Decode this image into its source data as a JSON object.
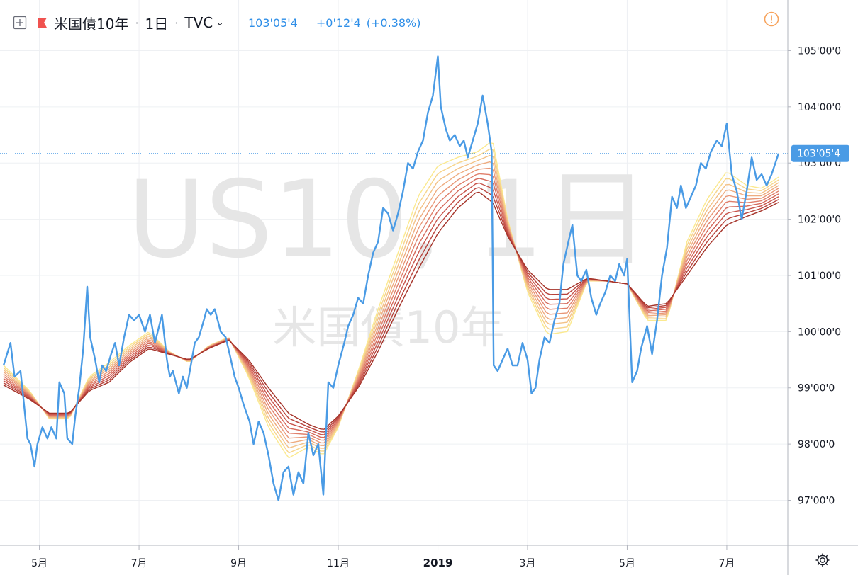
{
  "header": {
    "symbol": "米国債10年",
    "interval": "1日",
    "exchange": "TVC",
    "last": "103'05'4",
    "change": "+0'12'4",
    "change_pct": "(+0.38%)"
  },
  "watermark": {
    "line1": "US10, 1日",
    "line2": "米国債10年"
  },
  "price_label": "103'05'4",
  "colors": {
    "price_line": "#4a9be5",
    "ribbon": [
      "#fbe98f",
      "#f7d58b",
      "#f3c287",
      "#eeac80",
      "#e89676",
      "#e07f6b",
      "#d56a5c",
      "#c8554c",
      "#b8433c",
      "#a53228"
    ],
    "grid": "#eef0f3",
    "axis": "#b2b5be",
    "warning": "#f7a35c"
  },
  "icons": {
    "toggle": "plus-square-icon",
    "flag": "flag-icon",
    "warning": "warning-circle-icon",
    "settings": "gear-icon"
  },
  "chart_data": {
    "type": "line",
    "title": "米国債10年",
    "ylim": [
      96.2,
      105.9
    ],
    "y_ticks": [
      {
        "value": 97,
        "label": "97'00'0"
      },
      {
        "value": 98,
        "label": "98'00'0"
      },
      {
        "value": 99,
        "label": "99'00'0"
      },
      {
        "value": 100,
        "label": "100'00'0"
      },
      {
        "value": 101,
        "label": "101'00'0"
      },
      {
        "value": 102,
        "label": "102'00'0"
      },
      {
        "value": 103,
        "label": "103'00'0"
      },
      {
        "value": 104,
        "label": "104'00'0"
      },
      {
        "value": 105,
        "label": "105'00'0"
      }
    ],
    "x_ticks": [
      {
        "label": "5月",
        "x": 0.3
      },
      {
        "label": "7月",
        "x": 1.3
      },
      {
        "label": "9月",
        "x": 2.3
      },
      {
        "label": "11月",
        "x": 3.3
      },
      {
        "label": "2019",
        "x": 4.3,
        "bold": true
      },
      {
        "label": "3月",
        "x": 5.2
      },
      {
        "label": "5月",
        "x": 6.2
      },
      {
        "label": "7月",
        "x": 7.2
      }
    ],
    "x_range": [
      -0.06,
      7.72
    ],
    "last_value": 103.17,
    "series": [
      {
        "name": "米国債10年",
        "points": [
          [
            -0.06,
            99.4
          ],
          [
            0.01,
            99.8
          ],
          [
            0.05,
            99.2
          ],
          [
            0.11,
            99.3
          ],
          [
            0.14,
            98.8
          ],
          [
            0.18,
            98.1
          ],
          [
            0.21,
            98.0
          ],
          [
            0.25,
            97.6
          ],
          [
            0.28,
            98.0
          ],
          [
            0.33,
            98.3
          ],
          [
            0.38,
            98.1
          ],
          [
            0.42,
            98.3
          ],
          [
            0.47,
            98.1
          ],
          [
            0.5,
            99.1
          ],
          [
            0.55,
            98.9
          ],
          [
            0.58,
            98.1
          ],
          [
            0.63,
            98.0
          ],
          [
            0.66,
            98.5
          ],
          [
            0.7,
            99.0
          ],
          [
            0.74,
            99.7
          ],
          [
            0.78,
            100.8
          ],
          [
            0.81,
            99.9
          ],
          [
            0.86,
            99.5
          ],
          [
            0.9,
            99.1
          ],
          [
            0.93,
            99.4
          ],
          [
            0.97,
            99.3
          ],
          [
            1.02,
            99.6
          ],
          [
            1.06,
            99.8
          ],
          [
            1.1,
            99.4
          ],
          [
            1.15,
            99.9
          ],
          [
            1.2,
            100.3
          ],
          [
            1.25,
            100.2
          ],
          [
            1.3,
            100.3
          ],
          [
            1.36,
            100.0
          ],
          [
            1.41,
            100.3
          ],
          [
            1.46,
            99.8
          ],
          [
            1.53,
            100.3
          ],
          [
            1.58,
            99.5
          ],
          [
            1.61,
            99.2
          ],
          [
            1.64,
            99.3
          ],
          [
            1.7,
            98.9
          ],
          [
            1.74,
            99.2
          ],
          [
            1.78,
            99.0
          ],
          [
            1.82,
            99.4
          ],
          [
            1.86,
            99.8
          ],
          [
            1.9,
            99.9
          ],
          [
            1.95,
            100.2
          ],
          [
            1.98,
            100.4
          ],
          [
            2.02,
            100.3
          ],
          [
            2.06,
            100.4
          ],
          [
            2.12,
            100.0
          ],
          [
            2.17,
            99.9
          ],
          [
            2.21,
            99.6
          ],
          [
            2.26,
            99.2
          ],
          [
            2.3,
            99.0
          ],
          [
            2.35,
            98.7
          ],
          [
            2.41,
            98.4
          ],
          [
            2.45,
            98.0
          ],
          [
            2.5,
            98.4
          ],
          [
            2.55,
            98.2
          ],
          [
            2.6,
            97.8
          ],
          [
            2.65,
            97.3
          ],
          [
            2.7,
            97.0
          ],
          [
            2.75,
            97.5
          ],
          [
            2.8,
            97.6
          ],
          [
            2.85,
            97.1
          ],
          [
            2.9,
            97.5
          ],
          [
            2.95,
            97.3
          ],
          [
            3.0,
            98.2
          ],
          [
            3.05,
            97.8
          ],
          [
            3.1,
            98.0
          ],
          [
            3.15,
            97.1
          ],
          [
            3.2,
            99.1
          ],
          [
            3.25,
            99.0
          ],
          [
            3.3,
            99.4
          ],
          [
            3.36,
            99.8
          ],
          [
            3.4,
            100.1
          ],
          [
            3.45,
            100.3
          ],
          [
            3.5,
            100.6
          ],
          [
            3.55,
            100.5
          ],
          [
            3.6,
            101.0
          ],
          [
            3.65,
            101.4
          ],
          [
            3.7,
            101.6
          ],
          [
            3.75,
            102.2
          ],
          [
            3.8,
            102.1
          ],
          [
            3.85,
            101.8
          ],
          [
            3.9,
            102.1
          ],
          [
            3.95,
            102.5
          ],
          [
            4.0,
            103.0
          ],
          [
            4.05,
            102.9
          ],
          [
            4.1,
            103.2
          ],
          [
            4.15,
            103.4
          ],
          [
            4.2,
            103.9
          ],
          [
            4.25,
            104.2
          ],
          [
            4.3,
            104.9
          ],
          [
            4.33,
            104.0
          ],
          [
            4.38,
            103.6
          ],
          [
            4.42,
            103.4
          ],
          [
            4.47,
            103.5
          ],
          [
            4.52,
            103.3
          ],
          [
            4.56,
            103.4
          ],
          [
            4.6,
            103.1
          ],
          [
            4.65,
            103.4
          ],
          [
            4.7,
            103.7
          ],
          [
            4.75,
            104.2
          ],
          [
            4.8,
            103.7
          ],
          [
            4.84,
            103.2
          ],
          [
            4.86,
            99.4
          ],
          [
            4.9,
            99.3
          ],
          [
            4.95,
            99.5
          ],
          [
            5.0,
            99.7
          ],
          [
            5.05,
            99.4
          ],
          [
            5.1,
            99.4
          ],
          [
            5.15,
            99.8
          ],
          [
            5.2,
            99.5
          ],
          [
            5.24,
            98.9
          ],
          [
            5.28,
            99.0
          ],
          [
            5.32,
            99.5
          ],
          [
            5.37,
            99.9
          ],
          [
            5.42,
            99.8
          ],
          [
            5.47,
            100.2
          ],
          [
            5.52,
            100.5
          ],
          [
            5.56,
            101.2
          ],
          [
            5.61,
            101.6
          ],
          [
            5.65,
            101.9
          ],
          [
            5.7,
            101.0
          ],
          [
            5.74,
            100.9
          ],
          [
            5.79,
            101.1
          ],
          [
            5.84,
            100.6
          ],
          [
            5.89,
            100.3
          ],
          [
            5.93,
            100.5
          ],
          [
            5.98,
            100.7
          ],
          [
            6.03,
            101.0
          ],
          [
            6.08,
            100.9
          ],
          [
            6.12,
            101.2
          ],
          [
            6.17,
            101.0
          ],
          [
            6.2,
            101.3
          ],
          [
            6.25,
            99.1
          ],
          [
            6.3,
            99.3
          ],
          [
            6.34,
            99.7
          ],
          [
            6.4,
            100.1
          ],
          [
            6.45,
            99.6
          ],
          [
            6.5,
            100.2
          ],
          [
            6.55,
            101.0
          ],
          [
            6.6,
            101.5
          ],
          [
            6.65,
            102.4
          ],
          [
            6.7,
            102.2
          ],
          [
            6.74,
            102.6
          ],
          [
            6.79,
            102.2
          ],
          [
            6.84,
            102.4
          ],
          [
            6.89,
            102.6
          ],
          [
            6.94,
            103.0
          ],
          [
            6.99,
            102.9
          ],
          [
            7.04,
            103.2
          ],
          [
            7.1,
            103.4
          ],
          [
            7.15,
            103.3
          ],
          [
            7.2,
            103.7
          ],
          [
            7.25,
            102.8
          ],
          [
            7.3,
            102.5
          ],
          [
            7.35,
            102.0
          ],
          [
            7.4,
            102.5
          ],
          [
            7.45,
            103.1
          ],
          [
            7.5,
            102.7
          ],
          [
            7.55,
            102.8
          ],
          [
            7.6,
            102.6
          ],
          [
            7.65,
            102.8
          ],
          [
            7.72,
            103.17
          ]
        ]
      }
    ],
    "ribbon": {
      "name": "",
      "count": 10,
      "base_points": [
        [
          -0.06,
          99.05
        ],
        [
          0.2,
          98.8
        ],
        [
          0.4,
          98.55
        ],
        [
          0.6,
          98.55
        ],
        [
          0.8,
          98.95
        ],
        [
          1.0,
          99.1
        ],
        [
          1.2,
          99.45
        ],
        [
          1.4,
          99.7
        ],
        [
          1.6,
          99.6
        ],
        [
          1.8,
          99.5
        ],
        [
          2.0,
          99.7
        ],
        [
          2.2,
          99.85
        ],
        [
          2.4,
          99.5
        ],
        [
          2.6,
          99.0
        ],
        [
          2.8,
          98.55
        ],
        [
          3.0,
          98.35
        ],
        [
          3.15,
          98.25
        ],
        [
          3.3,
          98.5
        ],
        [
          3.5,
          99.0
        ],
        [
          3.7,
          99.65
        ],
        [
          3.9,
          100.4
        ],
        [
          4.1,
          101.1
        ],
        [
          4.3,
          101.75
        ],
        [
          4.5,
          102.2
        ],
        [
          4.7,
          102.5
        ],
        [
          4.85,
          102.3
        ],
        [
          5.0,
          101.7
        ],
        [
          5.2,
          101.1
        ],
        [
          5.4,
          100.75
        ],
        [
          5.6,
          100.75
        ],
        [
          5.8,
          100.95
        ],
        [
          6.0,
          100.9
        ],
        [
          6.2,
          100.85
        ],
        [
          6.4,
          100.45
        ],
        [
          6.6,
          100.5
        ],
        [
          6.8,
          101.0
        ],
        [
          7.0,
          101.5
        ],
        [
          7.2,
          101.9
        ],
        [
          7.4,
          102.05
        ],
        [
          7.55,
          102.15
        ],
        [
          7.72,
          102.3
        ]
      ],
      "top_points": [
        [
          -0.06,
          99.4
        ],
        [
          0.2,
          98.95
        ],
        [
          0.4,
          98.45
        ],
        [
          0.6,
          98.45
        ],
        [
          0.8,
          99.2
        ],
        [
          1.0,
          99.45
        ],
        [
          1.2,
          99.75
        ],
        [
          1.4,
          100.0
        ],
        [
          1.6,
          99.65
        ],
        [
          1.8,
          99.45
        ],
        [
          2.0,
          99.75
        ],
        [
          2.2,
          99.9
        ],
        [
          2.4,
          99.2
        ],
        [
          2.6,
          98.3
        ],
        [
          2.8,
          97.75
        ],
        [
          3.0,
          97.95
        ],
        [
          3.15,
          97.8
        ],
        [
          3.3,
          98.3
        ],
        [
          3.5,
          99.3
        ],
        [
          3.7,
          100.4
        ],
        [
          3.9,
          101.4
        ],
        [
          4.1,
          102.4
        ],
        [
          4.3,
          102.95
        ],
        [
          4.5,
          103.1
        ],
        [
          4.7,
          103.2
        ],
        [
          4.85,
          103.4
        ],
        [
          5.0,
          102.0
        ],
        [
          5.2,
          100.7
        ],
        [
          5.4,
          99.95
        ],
        [
          5.6,
          100.0
        ],
        [
          5.8,
          100.9
        ],
        [
          6.0,
          100.9
        ],
        [
          6.2,
          100.85
        ],
        [
          6.4,
          100.2
        ],
        [
          6.6,
          100.2
        ],
        [
          6.8,
          101.6
        ],
        [
          7.0,
          102.35
        ],
        [
          7.2,
          102.85
        ],
        [
          7.4,
          102.6
        ],
        [
          7.55,
          102.55
        ],
        [
          7.72,
          102.75
        ]
      ]
    }
  }
}
